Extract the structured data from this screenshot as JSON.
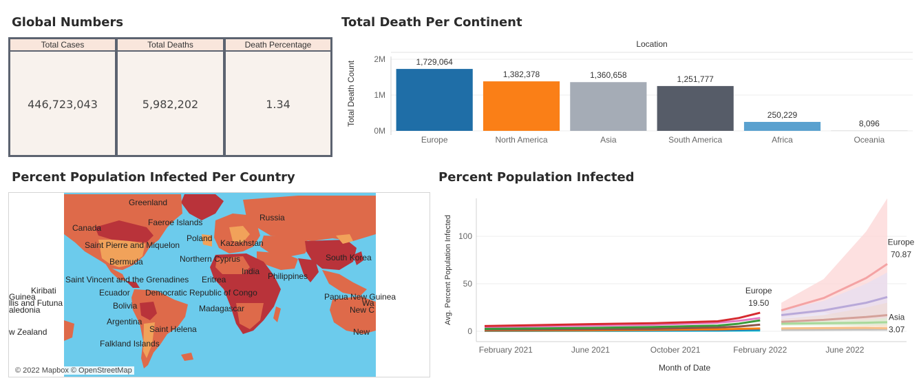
{
  "sections": {
    "global_numbers": "Global Numbers",
    "total_death": "Total Death Per Continent",
    "map": "Percent Population Infected Per Country",
    "line": "Percent Population Infected"
  },
  "global_numbers": {
    "columns": [
      {
        "header": "Total Cases",
        "value": "446,723,043"
      },
      {
        "header": "Total Deaths",
        "value": "5,982,202"
      },
      {
        "header": "Death Percentage",
        "value": "1.34"
      }
    ]
  },
  "map": {
    "labels": [
      "Greenland",
      "Faeroe Islands",
      "Russia",
      "Canada",
      "Poland",
      "Kazakhstan",
      "Saint Pierre and Miquelon",
      "Northern Cyprus",
      "South Korea",
      "Bermuda",
      "India",
      "Philippines",
      "Saint Vincent and the Grenadines",
      "Eritrea",
      "Kiribati",
      "Guinea",
      "Ecuador",
      "Democratic Republic of Congo",
      "Papua New Guinea",
      "llis and Futuna",
      "Wa",
      "aledonia",
      "Bolivia",
      "Madagascar",
      "New C",
      "Argentina",
      "Saint Helena",
      "w Zealand",
      "New",
      "Falkland Islands"
    ],
    "attribution": "© 2022 Mapbox © OpenStreetMap",
    "colors": {
      "ocean": "#6ccbec",
      "dark": "#b9333a",
      "mid": "#de6a4a",
      "light": "#f1a25a"
    }
  },
  "chart_data": [
    {
      "type": "bar",
      "title": "Total Death Per Continent",
      "header": "Location",
      "ylabel": "Total Death Count",
      "categories": [
        "Europe",
        "North America",
        "Asia",
        "South America",
        "Africa",
        "Oceania"
      ],
      "values": [
        1729064,
        1382378,
        1360658,
        1251777,
        250229,
        8096
      ],
      "value_labels": [
        "1,729,064",
        "1,382,378",
        "1,360,658",
        "1,251,777",
        "250,229",
        "8,096"
      ],
      "colors": [
        "#1f6ea7",
        "#fa7f17",
        "#a5acb6",
        "#565c68",
        "#5aa1cf",
        "#c9c9c9"
      ],
      "yticks": [
        "0M",
        "1M",
        "2M"
      ],
      "ylim": [
        0,
        2000000
      ],
      "grid": true
    },
    {
      "type": "line",
      "title": "Percent Population Infected",
      "xlabel": "Month of Date",
      "ylabel": "Avg. Percent Population Infected",
      "x_ticks": [
        "February 2021",
        "June 2021",
        "October 2021",
        "February 2022",
        "June 2022"
      ],
      "y_ticks": [
        0,
        50,
        100
      ],
      "ylim": [
        -8,
        140
      ],
      "x_range": [
        "2021-01",
        "2022-08"
      ],
      "forecast_start": "2022-03",
      "series": [
        {
          "name": "Europe",
          "color": "#d62a30",
          "x": [
            "2021-01",
            "2021-06",
            "2021-09",
            "2021-12",
            "2022-01",
            "2022-02"
          ],
          "y": [
            5.5,
            7.5,
            8.5,
            10.5,
            14,
            19.5
          ]
        },
        {
          "name": "",
          "color": "#3a9a3a",
          "x": [
            "2021-01",
            "2021-06",
            "2021-09",
            "2021-12",
            "2022-01",
            "2022-02"
          ],
          "y": [
            2.5,
            3.5,
            4.5,
            6,
            8,
            11.5
          ]
        },
        {
          "name": "",
          "color": "#e377c2",
          "x": [
            "2021-01",
            "2021-06",
            "2021-09",
            "2021-12",
            "2022-01",
            "2022-02"
          ],
          "y": [
            4.5,
            6,
            7,
            9,
            11,
            14
          ]
        },
        {
          "name": "",
          "color": "#8c564b",
          "x": [
            "2021-01",
            "2021-06",
            "2021-09",
            "2021-12",
            "2022-01",
            "2022-02"
          ],
          "y": [
            1.5,
            2,
            2.5,
            4,
            5,
            7
          ]
        },
        {
          "name": "",
          "color": "#ff7f0e",
          "x": [
            "2021-01",
            "2021-06",
            "2021-09",
            "2021-12",
            "2022-01",
            "2022-02"
          ],
          "y": [
            0.8,
            1,
            1.5,
            2,
            2.5,
            3
          ]
        },
        {
          "name": "",
          "color": "#1f77b4",
          "x": [
            "2021-01",
            "2021-06",
            "2021-09",
            "2021-12",
            "2022-01",
            "2022-02"
          ],
          "y": [
            0.5,
            0.8,
            1,
            1.2,
            1.5,
            2
          ]
        },
        {
          "name": "",
          "color": "#17becf",
          "x": [
            "2021-01",
            "2021-06",
            "2021-09",
            "2021-12",
            "2022-01",
            "2022-02"
          ],
          "y": [
            0.3,
            0.4,
            0.5,
            0.6,
            0.7,
            0.8
          ]
        }
      ],
      "forecast_series": [
        {
          "name": "Europe",
          "color": "#f4a3a4",
          "band": "#fcd6d6",
          "x": [
            "2022-03",
            "2022-05",
            "2022-07",
            "2022-08"
          ],
          "y": [
            22,
            35,
            56,
            70.87
          ],
          "lo": [
            14,
            20,
            8,
            2
          ],
          "hi": [
            30,
            55,
            105,
            140
          ]
        },
        {
          "name": "",
          "color": "#b8a9d9",
          "band": "#e5dff2",
          "x": [
            "2022-03",
            "2022-05",
            "2022-07",
            "2022-08"
          ],
          "y": [
            17,
            22,
            30,
            36
          ],
          "lo": [
            12,
            14,
            14,
            12
          ],
          "hi": [
            22,
            32,
            50,
            62
          ]
        },
        {
          "name": "",
          "color": "#d4a29a",
          "band": "#efdbd6",
          "x": [
            "2022-03",
            "2022-05",
            "2022-07",
            "2022-08"
          ],
          "y": [
            10,
            12,
            15,
            17
          ],
          "lo": [
            7,
            7,
            6,
            5
          ],
          "hi": [
            13,
            17,
            25,
            30
          ]
        },
        {
          "name": "",
          "color": "#a8d99a",
          "band": "#dcefd5",
          "x": [
            "2022-03",
            "2022-05",
            "2022-07",
            "2022-08"
          ],
          "y": [
            8,
            8.5,
            9,
            9.5
          ],
          "lo": [
            6,
            6,
            6,
            5
          ],
          "hi": [
            10,
            11,
            12,
            14
          ]
        },
        {
          "name": "Asia",
          "color": "#f6c08a",
          "band": "#fbe6d0",
          "x": [
            "2022-03",
            "2022-05",
            "2022-07",
            "2022-08"
          ],
          "y": [
            3,
            3.2,
            3.5,
            3.07
          ],
          "lo": [
            2,
            2,
            1.5,
            1
          ],
          "hi": [
            4,
            5,
            6,
            7
          ]
        },
        {
          "name": "",
          "color": "#c0c0c0",
          "band": "#e8e8e8",
          "x": [
            "2022-03",
            "2022-05",
            "2022-07",
            "2022-08"
          ],
          "y": [
            1.5,
            1.6,
            1.8,
            2
          ],
          "lo": [
            1,
            1,
            0.5,
            0
          ],
          "hi": [
            2,
            2.5,
            3,
            4
          ]
        }
      ],
      "annotations": [
        {
          "label": "Europe",
          "value": "19.50",
          "x": "2022-02",
          "y": 19.5
        },
        {
          "label": "Europe",
          "value": "70.87",
          "x": "2022-08",
          "y": 70.87
        },
        {
          "label": "Asia",
          "value": "3.07",
          "x": "2022-08",
          "y": 3.07
        }
      ]
    }
  ]
}
